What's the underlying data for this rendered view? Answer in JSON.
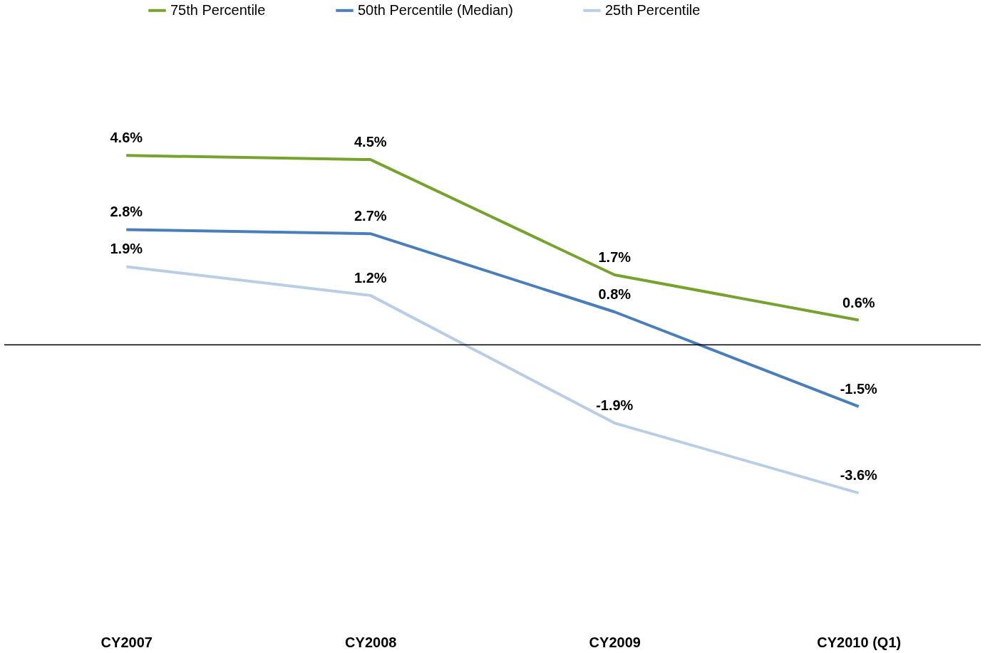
{
  "chart_data": {
    "type": "line",
    "categories": [
      "CY2007",
      "CY2008",
      "CY2009",
      "CY2010 (Q1)"
    ],
    "series": [
      {
        "name": "75th Percentile",
        "color": "#77a22f",
        "values": [
          4.6,
          4.5,
          1.7,
          0.6
        ],
        "value_labels": [
          "4.6%",
          "4.5%",
          "1.7%",
          "0.6%"
        ]
      },
      {
        "name": "50th Percentile (Median)",
        "color": "#4a7ebb",
        "values": [
          2.8,
          2.7,
          0.8,
          -1.5
        ],
        "value_labels": [
          "2.8%",
          "2.7%",
          "0.8%",
          "-1.5%"
        ]
      },
      {
        "name": "25th Percentile",
        "color": "#b9cde5",
        "values": [
          1.9,
          1.2,
          -1.9,
          -3.6
        ],
        "value_labels": [
          "1.9%",
          "1.2%",
          "-1.9%",
          "-3.6%"
        ]
      }
    ],
    "legend": "top",
    "grid": false,
    "marker": "none",
    "line_style": "solid"
  }
}
